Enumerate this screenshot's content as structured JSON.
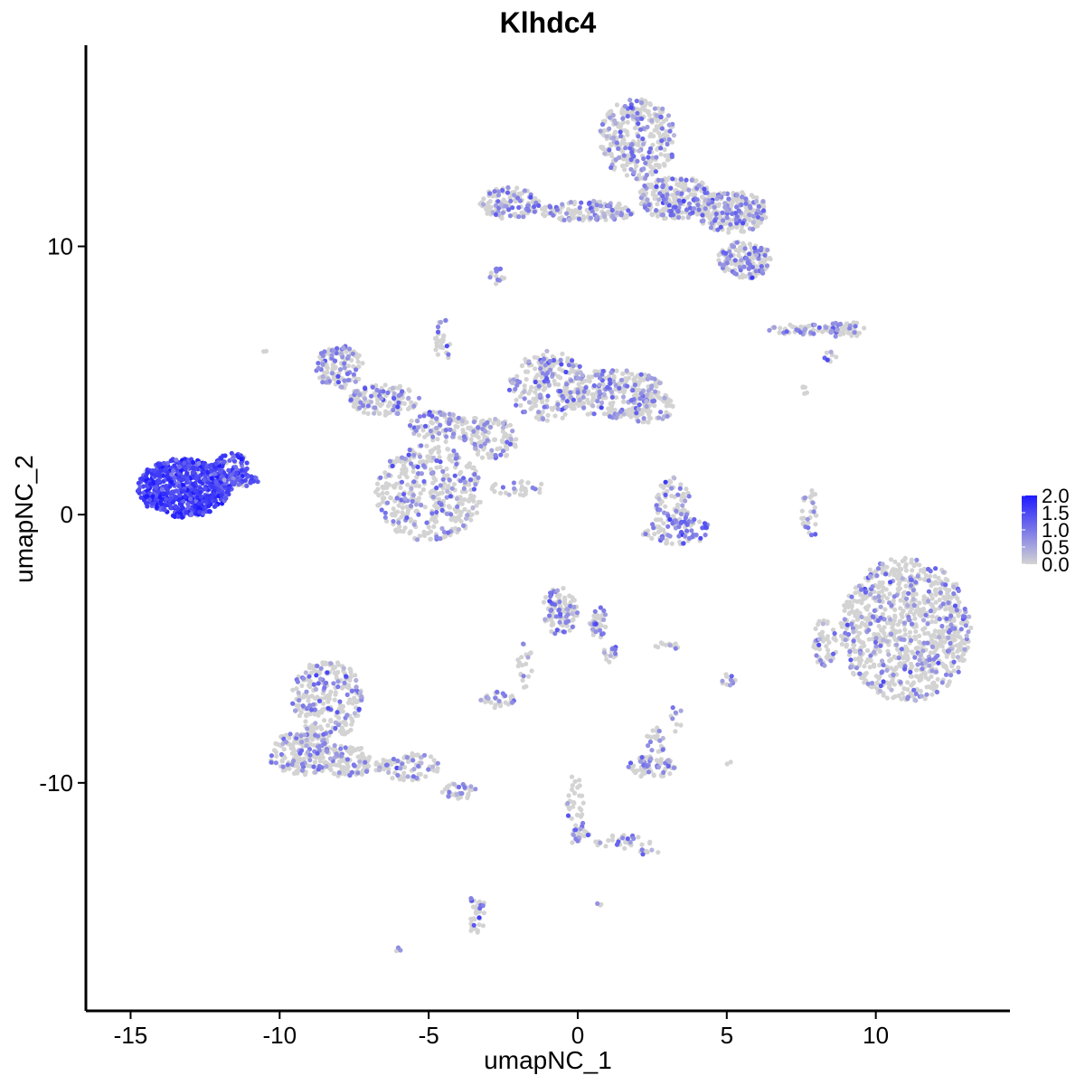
{
  "chart_data": {
    "type": "scatter",
    "title": "Klhdc4",
    "xlabel": "umapNC_1",
    "ylabel": "umapNC_2",
    "xlim": [
      -16.5,
      14.5
    ],
    "ylim": [
      -18.5,
      17.5
    ],
    "x_ticks": [
      -15,
      -10,
      -5,
      0,
      5,
      10
    ],
    "x_tick_labels": [
      "-15",
      "-10",
      "-5",
      "0",
      "5",
      "10"
    ],
    "y_ticks": [
      -10,
      0,
      10
    ],
    "y_tick_labels": [
      "-10",
      "0",
      "10"
    ],
    "grid": false,
    "legend": {
      "position": "right",
      "type": "colorbar",
      "min": 0.0,
      "max": 2.0,
      "breaks": [
        0.0,
        0.5,
        1.0,
        1.5,
        2.0
      ],
      "labels": [
        "0.0",
        "0.5",
        "1.0",
        "1.5",
        "2.0"
      ],
      "low_color": "#d3d3d3",
      "high_color": "#1f1aff"
    },
    "clusters": [
      {
        "cx": -13.2,
        "cy": 1.0,
        "rx": 1.6,
        "ry": 1.1,
        "n": 700,
        "high": 0.95,
        "level": 1.6
      },
      {
        "cx": -11.6,
        "cy": 1.8,
        "rx": 0.6,
        "ry": 0.5,
        "n": 80,
        "high": 0.9,
        "level": 1.4
      },
      {
        "cx": -11.3,
        "cy": 1.3,
        "rx": 0.6,
        "ry": 0.25,
        "n": 40,
        "high": 0.8,
        "level": 1.3
      },
      {
        "cx": 2.0,
        "cy": 14.0,
        "rx": 1.3,
        "ry": 1.5,
        "n": 320,
        "high": 0.3,
        "level": 0.8
      },
      {
        "cx": 3.3,
        "cy": 11.8,
        "rx": 1.3,
        "ry": 0.8,
        "n": 240,
        "high": 0.3,
        "level": 0.8
      },
      {
        "cx": 5.2,
        "cy": 11.3,
        "rx": 1.2,
        "ry": 0.8,
        "n": 220,
        "high": 0.3,
        "level": 0.8
      },
      {
        "cx": 5.6,
        "cy": 9.5,
        "rx": 0.9,
        "ry": 0.7,
        "n": 150,
        "high": 0.3,
        "level": 0.8
      },
      {
        "cx": 0.3,
        "cy": 11.3,
        "rx": 1.6,
        "ry": 0.4,
        "n": 140,
        "high": 0.3,
        "level": 0.8
      },
      {
        "cx": -2.3,
        "cy": 11.6,
        "rx": 1.0,
        "ry": 0.6,
        "n": 130,
        "high": 0.35,
        "level": 0.8
      },
      {
        "cx": -2.7,
        "cy": 8.9,
        "rx": 0.3,
        "ry": 0.3,
        "n": 15,
        "high": 0.4,
        "level": 0.8
      },
      {
        "cx": -8.0,
        "cy": 5.5,
        "rx": 0.8,
        "ry": 0.8,
        "n": 130,
        "high": 0.3,
        "level": 0.8
      },
      {
        "cx": -6.5,
        "cy": 4.3,
        "rx": 1.2,
        "ry": 0.6,
        "n": 130,
        "high": 0.3,
        "level": 0.8
      },
      {
        "cx": -4.4,
        "cy": 3.3,
        "rx": 1.3,
        "ry": 0.6,
        "n": 120,
        "high": 0.3,
        "level": 0.8
      },
      {
        "cx": -5.0,
        "cy": 0.8,
        "rx": 1.8,
        "ry": 1.8,
        "n": 400,
        "high": 0.25,
        "level": 0.8
      },
      {
        "cx": -1.0,
        "cy": 4.8,
        "rx": 1.3,
        "ry": 1.3,
        "n": 220,
        "high": 0.3,
        "level": 0.8
      },
      {
        "cx": 1.2,
        "cy": 4.5,
        "rx": 1.8,
        "ry": 0.9,
        "n": 260,
        "high": 0.25,
        "level": 0.8
      },
      {
        "cx": 2.4,
        "cy": 4.0,
        "rx": 0.8,
        "ry": 0.6,
        "n": 80,
        "high": 0.25,
        "level": 0.8
      },
      {
        "cx": -2.8,
        "cy": 2.8,
        "rx": 0.8,
        "ry": 0.8,
        "n": 90,
        "high": 0.3,
        "level": 0.8
      },
      {
        "cx": -4.5,
        "cy": 6.5,
        "rx": 0.3,
        "ry": 0.8,
        "n": 30,
        "high": 0.2,
        "level": 0.8
      },
      {
        "cx": -2.0,
        "cy": 1.0,
        "rx": 0.9,
        "ry": 0.3,
        "n": 30,
        "high": 0.2,
        "level": 0.8
      },
      {
        "cx": 3.2,
        "cy": 0.5,
        "rx": 0.6,
        "ry": 0.9,
        "n": 70,
        "high": 0.25,
        "level": 0.9
      },
      {
        "cx": 3.3,
        "cy": -0.6,
        "rx": 1.2,
        "ry": 0.5,
        "n": 90,
        "high": 0.5,
        "level": 1.0
      },
      {
        "cx": 7.7,
        "cy": 6.9,
        "rx": 1.3,
        "ry": 0.2,
        "n": 60,
        "high": 0.35,
        "level": 0.8
      },
      {
        "cx": 9.0,
        "cy": 6.9,
        "rx": 0.7,
        "ry": 0.3,
        "n": 40,
        "high": 0.35,
        "level": 0.8
      },
      {
        "cx": 8.4,
        "cy": 5.9,
        "rx": 0.3,
        "ry": 0.2,
        "n": 8,
        "high": 0.4,
        "level": 0.8
      },
      {
        "cx": 7.8,
        "cy": 0.0,
        "rx": 0.3,
        "ry": 1.0,
        "n": 30,
        "high": 0.3,
        "level": 0.8
      },
      {
        "cx": 11.0,
        "cy": -4.3,
        "rx": 2.2,
        "ry": 2.7,
        "n": 900,
        "high": 0.2,
        "level": 0.8
      },
      {
        "cx": 8.3,
        "cy": -4.8,
        "rx": 0.4,
        "ry": 1.0,
        "n": 50,
        "high": 0.25,
        "level": 0.8
      },
      {
        "cx": -8.4,
        "cy": -6.9,
        "rx": 1.2,
        "ry": 1.5,
        "n": 260,
        "high": 0.3,
        "level": 0.8
      },
      {
        "cx": -9.2,
        "cy": -8.9,
        "rx": 1.2,
        "ry": 0.8,
        "n": 180,
        "high": 0.3,
        "level": 0.8
      },
      {
        "cx": -7.7,
        "cy": -9.2,
        "rx": 0.8,
        "ry": 0.6,
        "n": 100,
        "high": 0.3,
        "level": 0.8
      },
      {
        "cx": -5.7,
        "cy": -9.4,
        "rx": 1.2,
        "ry": 0.5,
        "n": 90,
        "high": 0.3,
        "level": 0.8
      },
      {
        "cx": -4.0,
        "cy": -10.3,
        "rx": 0.6,
        "ry": 0.3,
        "n": 35,
        "high": 0.3,
        "level": 0.8
      },
      {
        "cx": -3.4,
        "cy": -14.9,
        "rx": 0.3,
        "ry": 0.8,
        "n": 35,
        "high": 0.3,
        "level": 0.8
      },
      {
        "cx": -0.6,
        "cy": -3.6,
        "rx": 0.6,
        "ry": 0.9,
        "n": 110,
        "high": 0.35,
        "level": 0.9
      },
      {
        "cx": 0.7,
        "cy": -4.0,
        "rx": 0.3,
        "ry": 0.6,
        "n": 35,
        "high": 0.3,
        "level": 0.8
      },
      {
        "cx": 1.1,
        "cy": -5.2,
        "rx": 0.3,
        "ry": 0.4,
        "n": 15,
        "high": 0.3,
        "level": 0.8
      },
      {
        "cx": -2.7,
        "cy": -6.9,
        "rx": 0.6,
        "ry": 0.3,
        "n": 35,
        "high": 0.3,
        "level": 0.8
      },
      {
        "cx": -1.8,
        "cy": -5.6,
        "rx": 0.3,
        "ry": 0.9,
        "n": 20,
        "high": 0.2,
        "level": 0.8
      },
      {
        "cx": 2.5,
        "cy": -9.4,
        "rx": 0.8,
        "ry": 0.4,
        "n": 70,
        "high": 0.35,
        "level": 0.8
      },
      {
        "cx": 2.7,
        "cy": -8.4,
        "rx": 0.4,
        "ry": 0.5,
        "n": 25,
        "high": 0.3,
        "level": 0.8
      },
      {
        "cx": 3.3,
        "cy": -7.6,
        "rx": 0.2,
        "ry": 0.5,
        "n": 10,
        "high": 0.3,
        "level": 0.8
      },
      {
        "cx": 2.9,
        "cy": -4.9,
        "rx": 0.5,
        "ry": 0.15,
        "n": 12,
        "high": 0.2,
        "level": 0.8
      },
      {
        "cx": 5.0,
        "cy": -6.2,
        "rx": 0.3,
        "ry": 0.3,
        "n": 12,
        "high": 0.4,
        "level": 0.8
      },
      {
        "cx": -0.1,
        "cy": -11.0,
        "rx": 0.3,
        "ry": 1.3,
        "n": 40,
        "high": 0.2,
        "level": 0.8
      },
      {
        "cx": 0.1,
        "cy": -11.9,
        "rx": 0.3,
        "ry": 0.3,
        "n": 15,
        "high": 0.3,
        "level": 0.8
      },
      {
        "cx": 1.5,
        "cy": -12.2,
        "rx": 1.0,
        "ry": 0.25,
        "n": 30,
        "high": 0.2,
        "level": 0.8
      },
      {
        "cx": 2.4,
        "cy": -12.6,
        "rx": 0.3,
        "ry": 0.2,
        "n": 10,
        "high": 0.3,
        "level": 0.8
      },
      {
        "cx": -10.5,
        "cy": 6.1,
        "rx": 0.05,
        "ry": 0.05,
        "n": 2,
        "high": 0.0,
        "level": 0.8
      },
      {
        "cx": -6.0,
        "cy": -16.2,
        "rx": 0.1,
        "ry": 0.1,
        "n": 3,
        "high": 0.3,
        "level": 0.8
      },
      {
        "cx": 0.7,
        "cy": -14.5,
        "rx": 0.1,
        "ry": 0.1,
        "n": 3,
        "high": 0.3,
        "level": 0.8
      },
      {
        "cx": 5.1,
        "cy": -9.3,
        "rx": 0.1,
        "ry": 0.1,
        "n": 2,
        "high": 0.0,
        "level": 0.8
      },
      {
        "cx": 7.6,
        "cy": 4.7,
        "rx": 0.2,
        "ry": 0.2,
        "n": 5,
        "high": 0.0,
        "level": 0.8
      }
    ]
  }
}
